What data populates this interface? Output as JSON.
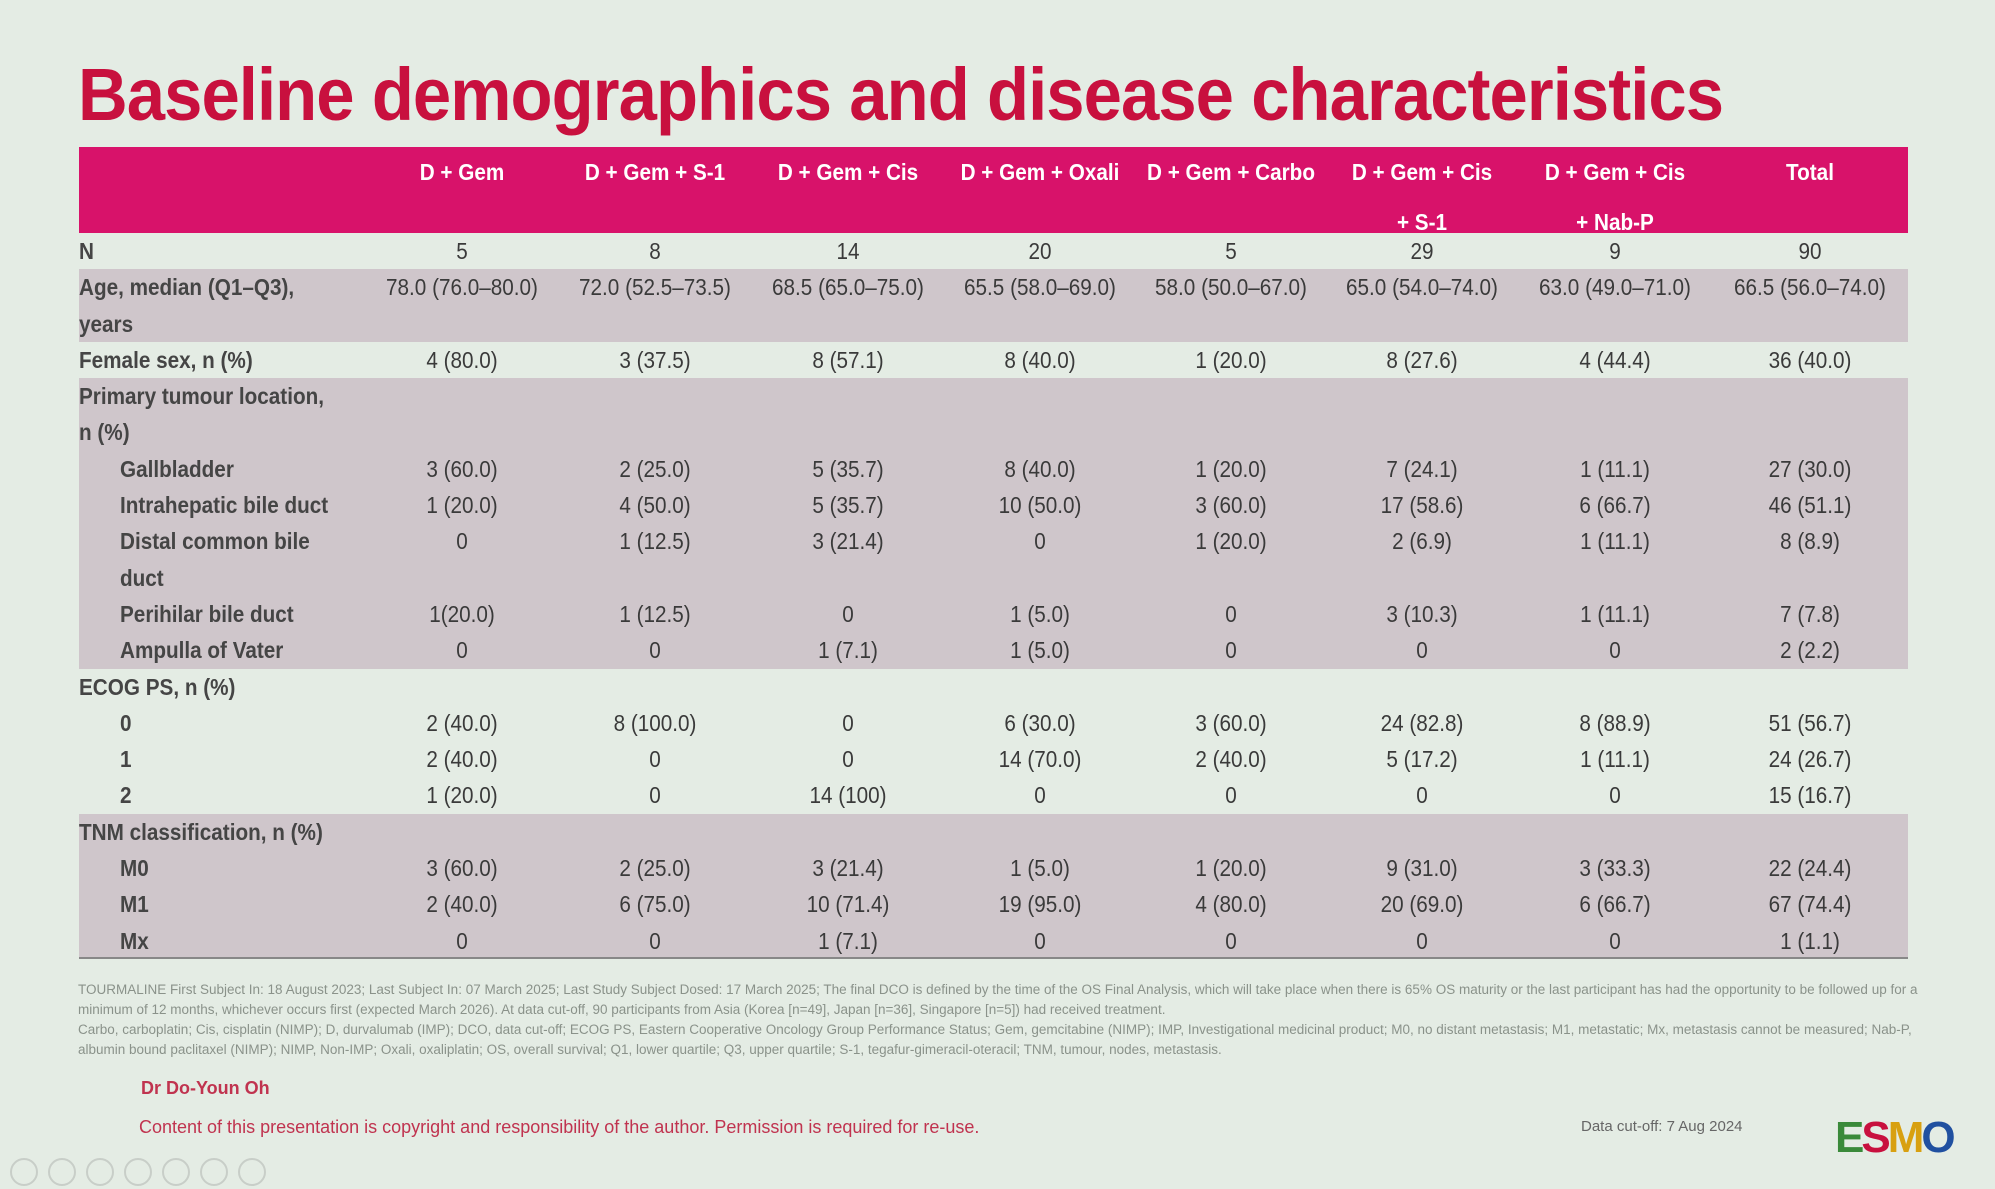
{
  "title": "Baseline demographics and disease characteristics",
  "columns": [
    [
      "D + Gem",
      ""
    ],
    [
      "D + Gem + S-1",
      ""
    ],
    [
      "D + Gem + Cis",
      ""
    ],
    [
      "D + Gem + Oxali",
      ""
    ],
    [
      "D + Gem + Carbo",
      ""
    ],
    [
      "D + Gem + Cis",
      "+ S-1"
    ],
    [
      "D + Gem + Cis",
      "+ Nab-P"
    ],
    [
      "Total",
      ""
    ]
  ],
  "rows": [
    {
      "label": "N",
      "indent": false,
      "shade": false,
      "values": [
        "5",
        "8",
        "14",
        "20",
        "5",
        "29",
        "9",
        "90"
      ]
    },
    {
      "label": "Age, median (Q1–Q3),",
      "indent": false,
      "shade": true,
      "values": [
        "78.0 (76.0–80.0)",
        "72.0 (52.5–73.5)",
        "68.5 (65.0–75.0)",
        "65.5 (58.0–69.0)",
        "58.0 (50.0–67.0)",
        "65.0 (54.0–74.0)",
        "63.0 (49.0–71.0)",
        "66.5 (56.0–74.0)"
      ]
    },
    {
      "label": "years",
      "indent": false,
      "shade": true,
      "values": []
    },
    {
      "label": "Female sex, n (%)",
      "indent": false,
      "shade": false,
      "values": [
        "4 (80.0)",
        "3 (37.5)",
        "8 (57.1)",
        "8 (40.0)",
        "1 (20.0)",
        "8 (27.6)",
        "4 (44.4)",
        "36 (40.0)"
      ]
    },
    {
      "label": "Primary tumour location,",
      "indent": false,
      "shade": true,
      "values": []
    },
    {
      "label": "n (%)",
      "indent": false,
      "shade": true,
      "values": []
    },
    {
      "label": "Gallbladder",
      "indent": true,
      "shade": true,
      "values": [
        "3 (60.0)",
        "2 (25.0)",
        "5 (35.7)",
        "8 (40.0)",
        "1 (20.0)",
        "7 (24.1)",
        "1 (11.1)",
        "27 (30.0)"
      ]
    },
    {
      "label": "Intrahepatic bile duct",
      "indent": true,
      "shade": true,
      "values": [
        "1 (20.0)",
        "4 (50.0)",
        "5 (35.7)",
        "10 (50.0)",
        "3 (60.0)",
        "17 (58.6)",
        "6 (66.7)",
        "46 (51.1)"
      ]
    },
    {
      "label": "Distal common bile",
      "indent": true,
      "shade": true,
      "values": [
        "0",
        "1 (12.5)",
        "3 (21.4)",
        "0",
        "1 (20.0)",
        "2 (6.9)",
        "1 (11.1)",
        "8 (8.9)"
      ]
    },
    {
      "label": "duct",
      "indent": true,
      "shade": true,
      "values": []
    },
    {
      "label": "Perihilar bile duct",
      "indent": true,
      "shade": true,
      "values": [
        "1(20.0)",
        "1 (12.5)",
        "0",
        "1 (5.0)",
        "0",
        "3 (10.3)",
        "1 (11.1)",
        "7 (7.8)"
      ]
    },
    {
      "label": "Ampulla of Vater",
      "indent": true,
      "shade": true,
      "values": [
        "0",
        "0",
        "1 (7.1)",
        "1 (5.0)",
        "0",
        "0",
        "0",
        "2 (2.2)"
      ]
    },
    {
      "label": "ECOG PS, n (%)",
      "indent": false,
      "shade": false,
      "values": []
    },
    {
      "label": "0",
      "indent": true,
      "shade": false,
      "values": [
        "2 (40.0)",
        "8 (100.0)",
        "0",
        "6 (30.0)",
        "3 (60.0)",
        "24 (82.8)",
        "8 (88.9)",
        "51 (56.7)"
      ]
    },
    {
      "label": "1",
      "indent": true,
      "shade": false,
      "values": [
        "2 (40.0)",
        "0",
        "0",
        "14 (70.0)",
        "2 (40.0)",
        "5 (17.2)",
        "1 (11.1)",
        "24 (26.7)"
      ]
    },
    {
      "label": "2",
      "indent": true,
      "shade": false,
      "values": [
        "1 (20.0)",
        "0",
        "14 (100)",
        "0",
        "0",
        "0",
        "0",
        "15 (16.7)"
      ]
    },
    {
      "label": "TNM classification, n (%)",
      "indent": false,
      "shade": true,
      "values": []
    },
    {
      "label": "M0",
      "indent": true,
      "shade": true,
      "values": [
        "3 (60.0)",
        "2 (25.0)",
        "3 (21.4)",
        "1 (5.0)",
        "1 (20.0)",
        "9 (31.0)",
        "3 (33.3)",
        "22 (24.4)"
      ]
    },
    {
      "label": "M1",
      "indent": true,
      "shade": true,
      "values": [
        "2 (40.0)",
        "6 (75.0)",
        "10 (71.4)",
        "19 (95.0)",
        "4 (80.0)",
        "20 (69.0)",
        "6 (66.7)",
        "67 (74.4)"
      ]
    },
    {
      "label": "Mx",
      "indent": true,
      "shade": true,
      "values": [
        "0",
        "0",
        "1 (7.1)",
        "0",
        "0",
        "0",
        "0",
        "1 (1.1)"
      ]
    }
  ],
  "footnotes": [
    "TOURMALINE First Subject In: 18 August 2023; Last Subject In: 07 March 2025; Last Study Subject Dosed: 17 March 2025; The final DCO is defined by the time of the OS Final Analysis, which will take place when there is 65% OS maturity or the last participant has had the opportunity to be followed up for a minimum of 12 months, whichever occurs first (expected March 2026). At data cut-off, 90 participants from Asia (Korea [n=49], Japan [n=36], Singapore [n=5]) had received treatment.",
    "Carbo, carboplatin; Cis, cisplatin (NIMP); D, durvalumab (IMP); DCO, data cut-off; ECOG PS, Eastern Cooperative Oncology Group Performance Status; Gem, gemcitabine (NIMP); IMP, Investigational medicinal product; M0, no distant metastasis; M1, metastatic; Mx, metastasis cannot be measured; Nab-P, albumin bound paclitaxel (NIMP); NIMP, Non-IMP; Oxali, oxaliplatin; OS, overall survival; Q1, lower quartile; Q3, upper quartile; S-1, tegafur-gimeracil-oteracil; TNM, tumour, nodes, metastasis."
  ],
  "author": "Dr Do-Youn Oh",
  "copyright": "Content of this presentation is copyright and responsibility of the author. Permission is required for re-use.",
  "data_cutoff": "Data cut-off: 7 Aug 2024",
  "logo": "ESMO",
  "colors": {
    "title": "#c8103e",
    "header": "#d8126a",
    "shade": "#cfc6cb"
  }
}
